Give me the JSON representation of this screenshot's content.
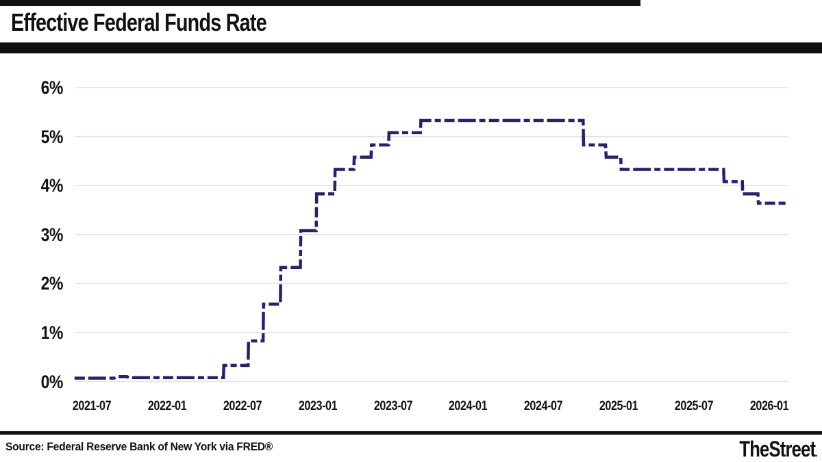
{
  "header": {
    "title": "Effective Federal Funds Rate"
  },
  "footer": {
    "source": "Source: Federal Reserve Bank of New York via FRED®",
    "brand": "TheStreet",
    "brand_mark": "."
  },
  "colors": {
    "line": "#2b1c74",
    "grid": "#e2e2e2",
    "rule": "#111111",
    "text": "#111111"
  },
  "chart_data": {
    "type": "line",
    "style": "step-dashed",
    "title": "Effective Federal Funds Rate",
    "xlabel": "",
    "ylabel": "",
    "ylim": [
      0,
      6
    ],
    "xlim": [
      "2021-05-20",
      "2026-02-10"
    ],
    "grid": "horizontal",
    "legend": "none",
    "y_ticks": [
      {
        "label": "0%",
        "value": 0
      },
      {
        "label": "1%",
        "value": 1
      },
      {
        "label": "2%",
        "value": 2
      },
      {
        "label": "3%",
        "value": 3
      },
      {
        "label": "4%",
        "value": 4
      },
      {
        "label": "5%",
        "value": 5
      },
      {
        "label": "6%",
        "value": 6
      }
    ],
    "x_ticks": [
      {
        "label": "2021-07",
        "date": "2021-07-01"
      },
      {
        "label": "2022-01",
        "date": "2022-01-01"
      },
      {
        "label": "2022-07",
        "date": "2022-07-01"
      },
      {
        "label": "2023-01",
        "date": "2023-01-01"
      },
      {
        "label": "2023-07",
        "date": "2023-07-01"
      },
      {
        "label": "2024-01",
        "date": "2024-01-01"
      },
      {
        "label": "2024-07",
        "date": "2024-07-01"
      },
      {
        "label": "2025-01",
        "date": "2025-01-01"
      },
      {
        "label": "2025-07",
        "date": "2025-07-01"
      },
      {
        "label": "2026-01",
        "date": "2026-01-01"
      }
    ],
    "series": [
      {
        "name": "Effective Federal Funds Rate",
        "unit": "percent",
        "points": [
          [
            "2021-05-20",
            0.07
          ],
          [
            "2021-08-25",
            0.07
          ],
          [
            "2021-09-01",
            0.1
          ],
          [
            "2021-09-25",
            0.1
          ],
          [
            "2021-10-01",
            0.08
          ],
          [
            "2022-05-16",
            0.08
          ],
          [
            "2022-05-17",
            0.33
          ],
          [
            "2022-07-15",
            0.33
          ],
          [
            "2022-07-16",
            0.83
          ],
          [
            "2022-08-21",
            0.83
          ],
          [
            "2022-08-22",
            1.58
          ],
          [
            "2022-10-02",
            1.58
          ],
          [
            "2022-10-03",
            2.33
          ],
          [
            "2022-11-20",
            2.33
          ],
          [
            "2022-11-21",
            3.08
          ],
          [
            "2022-12-28",
            3.08
          ],
          [
            "2022-12-29",
            3.83
          ],
          [
            "2023-02-12",
            3.83
          ],
          [
            "2023-02-13",
            4.33
          ],
          [
            "2023-03-28",
            4.33
          ],
          [
            "2023-03-29",
            4.58
          ],
          [
            "2023-05-09",
            4.58
          ],
          [
            "2023-05-10",
            4.83
          ],
          [
            "2023-06-21",
            4.83
          ],
          [
            "2023-06-22",
            5.08
          ],
          [
            "2023-09-07",
            5.08
          ],
          [
            "2023-09-08",
            5.33
          ],
          [
            "2024-10-06",
            5.33
          ],
          [
            "2024-10-07",
            4.83
          ],
          [
            "2024-11-30",
            4.83
          ],
          [
            "2024-12-01",
            4.58
          ],
          [
            "2025-01-06",
            4.58
          ],
          [
            "2025-01-07",
            4.33
          ],
          [
            "2025-09-12",
            4.33
          ],
          [
            "2025-09-13",
            4.08
          ],
          [
            "2025-10-27",
            4.08
          ],
          [
            "2025-10-28",
            3.83
          ],
          [
            "2025-12-04",
            3.83
          ],
          [
            "2025-12-05",
            3.64
          ],
          [
            "2026-02-10",
            3.64
          ]
        ]
      }
    ]
  }
}
